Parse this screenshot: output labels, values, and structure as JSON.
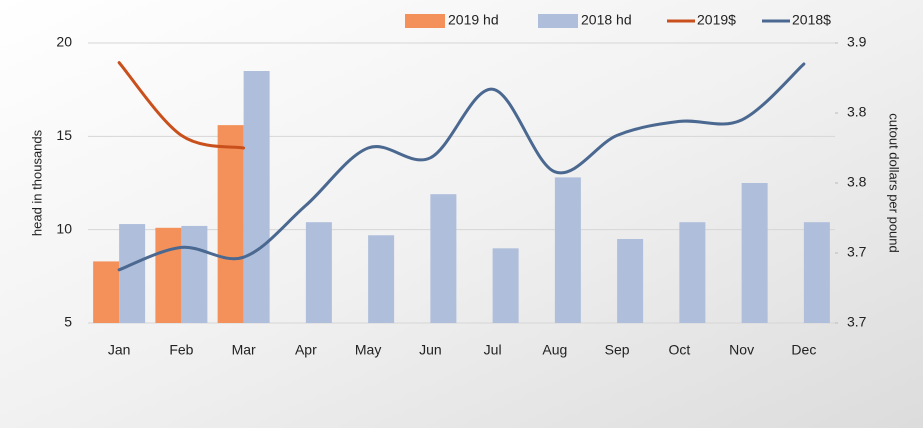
{
  "chart_data": {
    "type": "bar-line",
    "ylabel": "head in thousands",
    "y2label": "cutout dollars per pound",
    "categories": [
      "Jan",
      "Feb",
      "Mar",
      "Apr",
      "May",
      "Jun",
      "Jul",
      "Aug",
      "Sep",
      "Oct",
      "Nov",
      "Dec"
    ],
    "series": [
      {
        "name": "2019 hd",
        "type": "bar",
        "color": "#f4915a",
        "values": [
          8.3,
          10.1,
          15.6,
          null,
          null,
          null,
          null,
          null,
          null,
          null,
          null,
          null
        ]
      },
      {
        "name": "2018 hd",
        "type": "bar",
        "color": "#aebedb",
        "values": [
          10.3,
          10.2,
          18.5,
          10.4,
          9.7,
          11.9,
          9.0,
          12.8,
          9.5,
          10.4,
          12.5,
          10.4
        ]
      },
      {
        "name": "2019$",
        "type": "line",
        "axis": "y2",
        "color": "#c9501c",
        "values": [
          3.886,
          3.834,
          3.825,
          null,
          null,
          null,
          null,
          null,
          null,
          null,
          null,
          null
        ]
      },
      {
        "name": "2018$",
        "type": "line",
        "axis": "y2",
        "color": "#4a6890",
        "values": [
          3.738,
          3.754,
          3.747,
          3.784,
          3.825,
          3.818,
          3.867,
          3.808,
          3.834,
          3.844,
          3.845,
          3.885
        ]
      }
    ],
    "ylim": [
      5,
      20
    ],
    "yticks": [
      5,
      10,
      15,
      20
    ],
    "y2lim": [
      3.7,
      3.9
    ],
    "y2ticks": [
      {
        "value": 3.7,
        "label": "3.7"
      },
      {
        "value": 3.75,
        "label": "3.7"
      },
      {
        "value": 3.8,
        "label": "3.8"
      },
      {
        "value": 3.85,
        "label": "3.8"
      },
      {
        "value": 3.9,
        "label": "3.9"
      }
    ],
    "grid": true,
    "legend": "top"
  }
}
